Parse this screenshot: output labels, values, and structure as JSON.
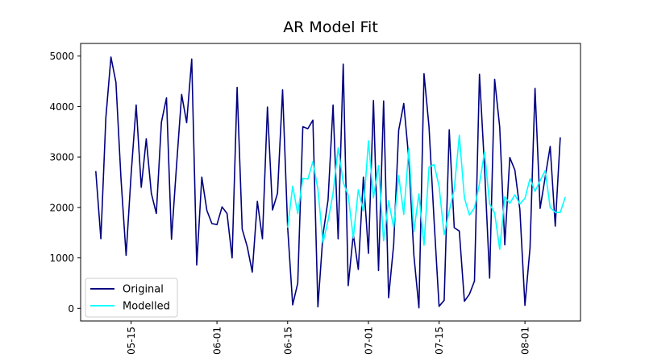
{
  "chart_data": {
    "type": "line",
    "title": "AR Model Fit",
    "xlabel": "",
    "ylabel": "",
    "x_start": "2023-05-08",
    "x_range": [
      "2023-05-05",
      "2023-08-12"
    ],
    "ylim": [
      -250,
      5250
    ],
    "y_ticks": [
      0,
      1000,
      2000,
      3000,
      4000,
      5000
    ],
    "y_tick_labels": [
      "0",
      "1000",
      "2000",
      "3000",
      "4000",
      "5000"
    ],
    "x_ticks": [
      "2023-05-15",
      "2023-06-01",
      "2023-06-15",
      "2023-07-01",
      "2023-07-15",
      "2023-08-01"
    ],
    "x_tick_labels": [
      "05-15",
      "06-01",
      "06-15",
      "07-01",
      "07-15",
      "08-01"
    ],
    "grid": false,
    "legend_position": "lower-left",
    "series": [
      {
        "name": "Original",
        "color": "#000080",
        "start": "2023-05-08",
        "values": [
          2720,
          1380,
          3780,
          4980,
          4480,
          2560,
          1050,
          2650,
          4030,
          2400,
          3360,
          2280,
          1880,
          3690,
          4170,
          1370,
          2840,
          4240,
          3680,
          4940,
          860,
          2600,
          1940,
          1680,
          1660,
          2010,
          1880,
          1000,
          4380,
          1570,
          1220,
          720,
          2120,
          1380,
          3990,
          1950,
          2280,
          4330,
          1600,
          70,
          500,
          3600,
          3560,
          3730,
          30,
          1460,
          2150,
          4030,
          1380,
          4840,
          450,
          1470,
          770,
          2600,
          1090,
          4120,
          750,
          4110,
          210,
          1270,
          3530,
          4060,
          2950,
          1060,
          10,
          4650,
          3600,
          1740,
          40,
          160,
          3540,
          1600,
          1530,
          140,
          280,
          540,
          4640,
          2780,
          600,
          4540,
          3590,
          1260,
          2990,
          2740,
          1960,
          60,
          1200,
          4360,
          1980,
          2600,
          3210,
          1630,
          3390
        ]
      },
      {
        "name": "Modelled",
        "color": "#00ffff",
        "start": "2023-06-15",
        "values": [
          1600,
          2420,
          1880,
          2580,
          2560,
          2910,
          2360,
          1300,
          1740,
          2280,
          3180,
          2500,
          2240,
          1390,
          2350,
          1930,
          3320,
          2190,
          2830,
          1340,
          2130,
          1600,
          2630,
          1860,
          3170,
          1520,
          2270,
          1250,
          2800,
          2850,
          2420,
          1460,
          1930,
          2360,
          3430,
          2190,
          1850,
          1990,
          2470,
          3100,
          2070,
          1890,
          1170,
          2210,
          2080,
          2250,
          2070,
          2180,
          2570,
          2320,
          2530,
          2730,
          2000,
          1900,
          1900,
          2210
        ]
      }
    ]
  }
}
